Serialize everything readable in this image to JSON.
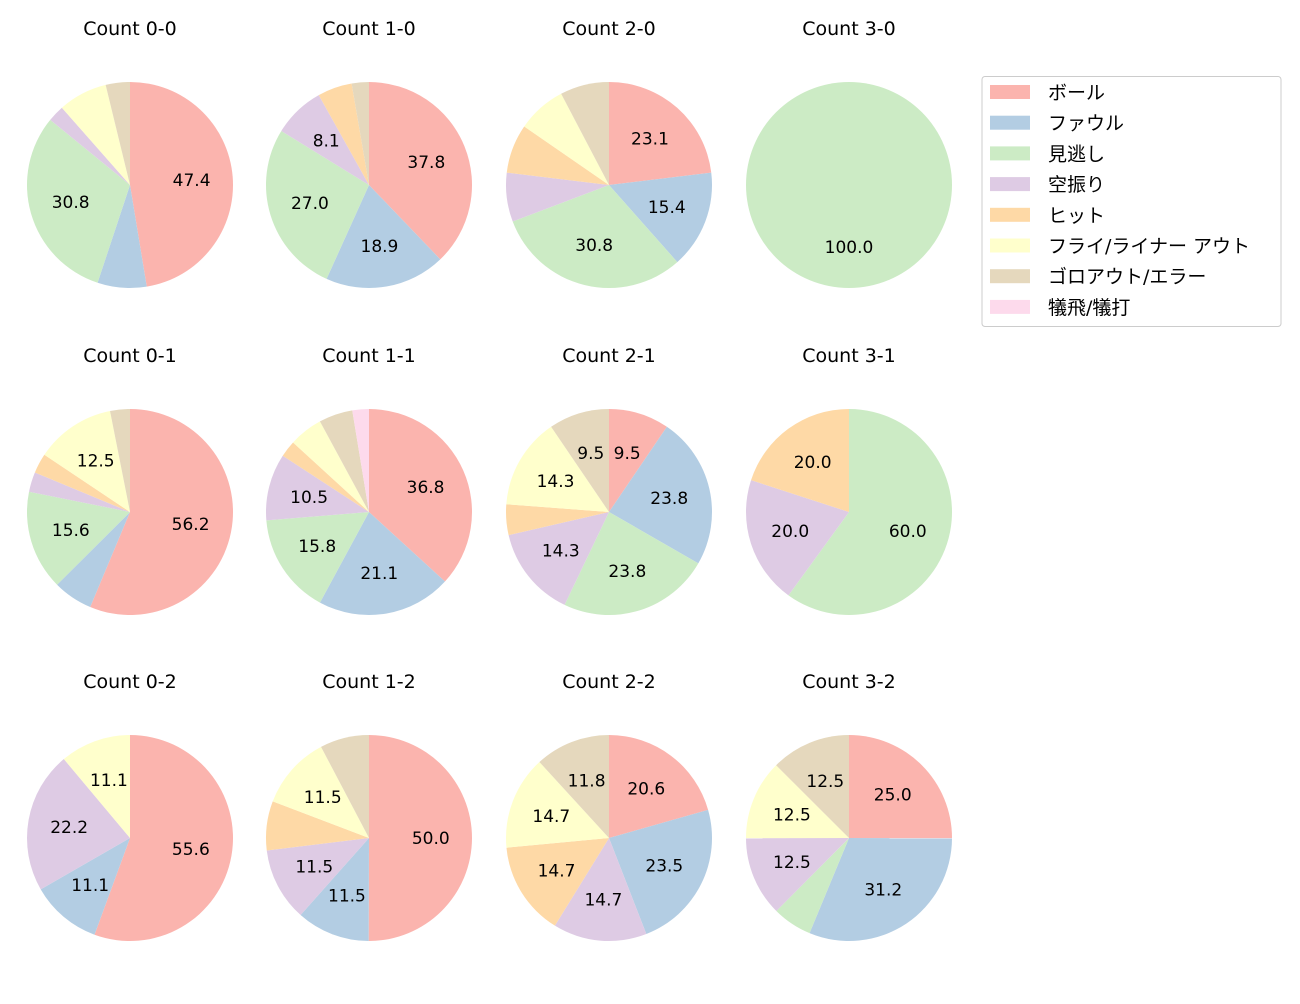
{
  "legend": {
    "placement": "right",
    "entries": [
      "ボール",
      "ファウル",
      "見逃し",
      "空振り",
      "ヒット",
      "フライ/ライナー アウト",
      "ゴロアウト/エラー",
      "犠飛/犠打"
    ],
    "colors": [
      "#fbb4ae",
      "#b3cde3",
      "#ccebc5",
      "#decbe4",
      "#fed9a6",
      "#ffffcc",
      "#e5d8bd",
      "#fddaec"
    ]
  },
  "chart_data": [
    {
      "type": "pie",
      "title": "Count 0-0",
      "values": [
        47.4,
        7.7,
        30.8,
        2.6,
        0,
        7.7,
        3.8,
        0
      ]
    },
    {
      "type": "pie",
      "title": "Count 1-0",
      "values": [
        37.8,
        18.9,
        27.0,
        8.1,
        5.4,
        0,
        2.7,
        0
      ]
    },
    {
      "type": "pie",
      "title": "Count 2-0",
      "values": [
        23.1,
        15.4,
        30.8,
        7.7,
        7.7,
        7.7,
        7.7,
        0
      ]
    },
    {
      "type": "pie",
      "title": "Count 3-0",
      "values": [
        0,
        0,
        100.0,
        0,
        0,
        0,
        0,
        0
      ]
    },
    {
      "type": "pie",
      "title": "Count 0-1",
      "values": [
        56.2,
        6.2,
        15.6,
        3.1,
        3.1,
        12.5,
        3.1,
        0
      ]
    },
    {
      "type": "pie",
      "title": "Count 1-1",
      "values": [
        36.8,
        21.1,
        15.8,
        10.5,
        2.6,
        5.3,
        5.3,
        2.6
      ]
    },
    {
      "type": "pie",
      "title": "Count 2-1",
      "values": [
        9.5,
        23.8,
        23.8,
        14.3,
        4.8,
        14.3,
        9.5,
        0
      ]
    },
    {
      "type": "pie",
      "title": "Count 3-1",
      "values": [
        0,
        0,
        60.0,
        20.0,
        20.0,
        0,
        0,
        0
      ]
    },
    {
      "type": "pie",
      "title": "Count 0-2",
      "values": [
        55.6,
        11.1,
        0,
        22.2,
        0,
        11.1,
        0,
        0
      ]
    },
    {
      "type": "pie",
      "title": "Count 1-2",
      "values": [
        50.0,
        11.5,
        0,
        11.5,
        7.7,
        11.5,
        7.7,
        0
      ]
    },
    {
      "type": "pie",
      "title": "Count 2-2",
      "values": [
        20.6,
        23.5,
        0,
        14.7,
        14.7,
        14.7,
        11.8,
        0
      ]
    },
    {
      "type": "pie",
      "title": "Count 3-2",
      "values": [
        25.0,
        31.2,
        6.2,
        12.5,
        0,
        12.5,
        12.5,
        0
      ]
    }
  ]
}
